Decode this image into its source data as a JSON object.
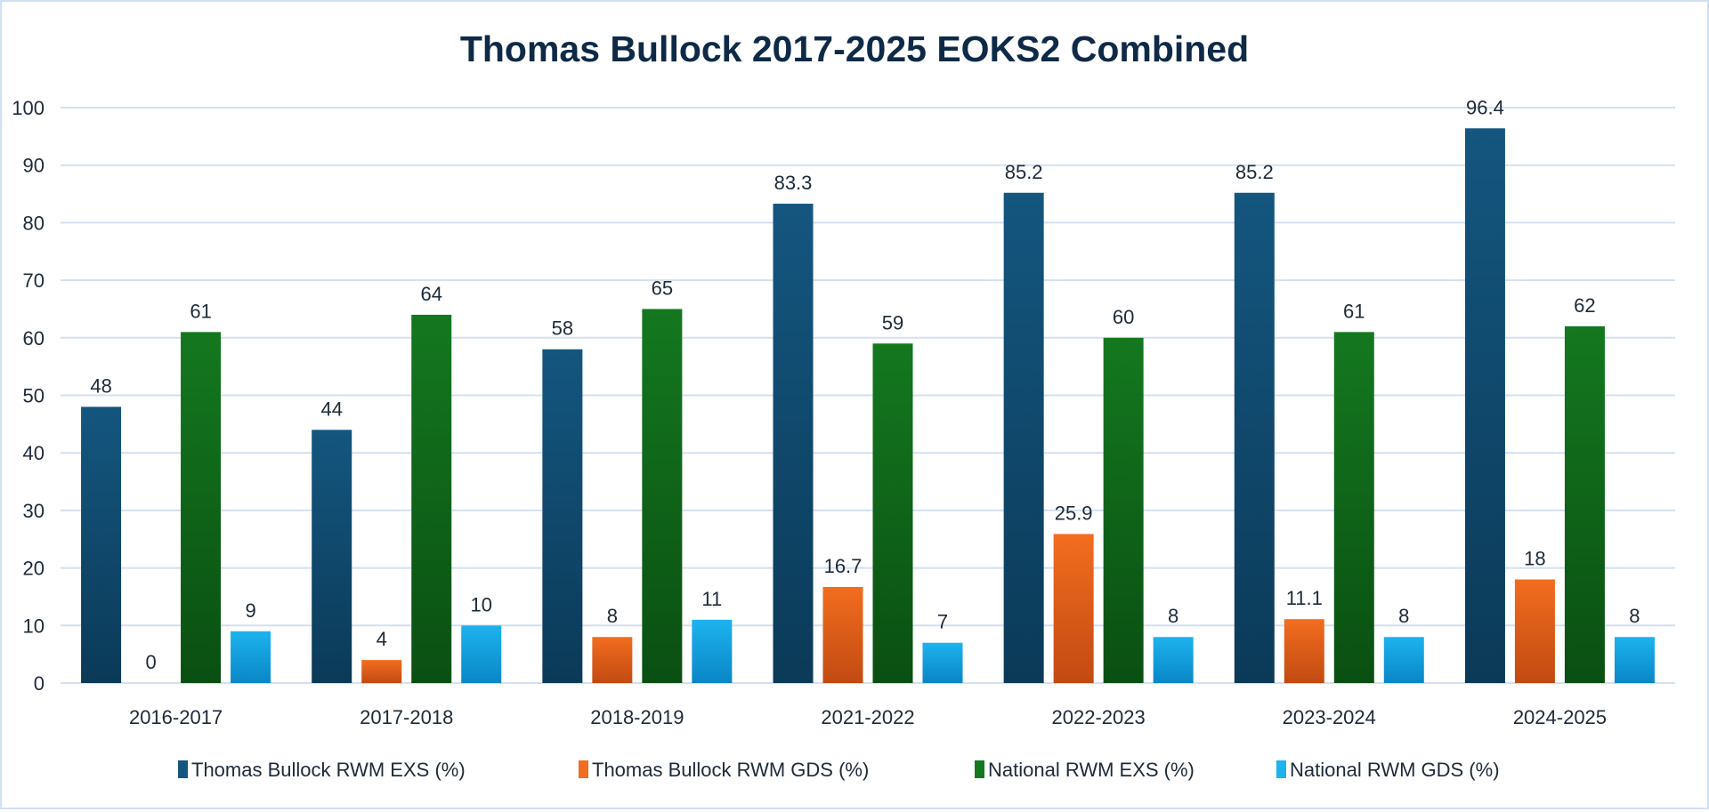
{
  "chart_data": {
    "type": "bar",
    "title": "Thomas Bullock 2017-2025 EOKS2 Combined",
    "xlabel": "",
    "ylabel": "",
    "ylim": [
      0,
      100
    ],
    "yticks": [
      0,
      10,
      20,
      30,
      40,
      50,
      60,
      70,
      80,
      90,
      100
    ],
    "grid": true,
    "legend_position": "bottom",
    "categories": [
      "2016-2017",
      "2017-2018",
      "2018-2019",
      "2021-2022",
      "2022-2023",
      "2023-2024",
      "2024-2025"
    ],
    "series": [
      {
        "name": "Thomas Bullock RWM EXS (%)",
        "values": [
          48,
          44,
          58,
          83.3,
          85.2,
          85.2,
          96.4
        ],
        "color": "#14567f",
        "color_dark": "#0b3a58"
      },
      {
        "name": "Thomas Bullock RWM GDS (%)",
        "values": [
          0,
          4,
          8,
          16.7,
          25.9,
          11.1,
          18
        ],
        "color": "#f26d1f",
        "color_dark": "#c24a12"
      },
      {
        "name": "National RWM EXS (%)",
        "values": [
          61,
          64,
          65,
          59,
          60,
          61,
          62
        ],
        "color": "#14781f",
        "color_dark": "#0a4f12"
      },
      {
        "name": "National RWM GDS (%)",
        "values": [
          9,
          10,
          11,
          7,
          8,
          8,
          8
        ],
        "color": "#1db3ee",
        "color_dark": "#0a86c6"
      }
    ]
  }
}
